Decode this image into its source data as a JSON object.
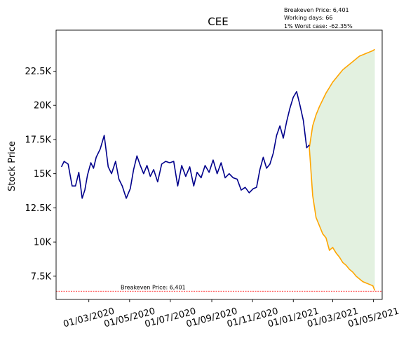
{
  "chart_data": {
    "type": "line",
    "title": "CEE",
    "xlabel": "",
    "ylabel": "Stock Price",
    "x_ticks": [
      "01/03/2020",
      "01/05/2020",
      "01/07/2020",
      "01/09/2020",
      "01/11/2020",
      "01/01/2021",
      "01/03/2021",
      "01/05/2021"
    ],
    "y_ticks": [
      {
        "value": 7500,
        "label": "7.5K"
      },
      {
        "value": 10000,
        "label": "10K"
      },
      {
        "value": 12500,
        "label": "12.5K"
      },
      {
        "value": 15000,
        "label": "15K"
      },
      {
        "value": 17500,
        "label": "17.5K"
      },
      {
        "value": 20000,
        "label": "20K"
      },
      {
        "value": 22500,
        "label": "22.5K"
      }
    ],
    "xlim": [
      "2020-01-12",
      "2021-05-14"
    ],
    "ylim": [
      5800,
      25500
    ],
    "grid": false,
    "colors": {
      "history": "#00008b",
      "projection": "#ffa500",
      "fill": "#e3f1e0",
      "breakeven": "#ff0000"
    },
    "history": {
      "x": [
        "2020-01-20",
        "2020-01-24",
        "2020-01-30",
        "2020-02-05",
        "2020-02-10",
        "2020-02-15",
        "2020-02-20",
        "2020-02-24",
        "2020-02-28",
        "2020-03-04",
        "2020-03-08",
        "2020-03-12",
        "2020-03-18",
        "2020-03-24",
        "2020-03-30",
        "2020-04-04",
        "2020-04-10",
        "2020-04-15",
        "2020-04-20",
        "2020-04-26",
        "2020-05-02",
        "2020-05-07",
        "2020-05-12",
        "2020-05-17",
        "2020-05-22",
        "2020-05-27",
        "2020-06-01",
        "2020-06-06",
        "2020-06-12",
        "2020-06-18",
        "2020-06-24",
        "2020-06-30",
        "2020-07-06",
        "2020-07-12",
        "2020-07-18",
        "2020-07-24",
        "2020-07-30",
        "2020-08-05",
        "2020-08-10",
        "2020-08-16",
        "2020-08-22",
        "2020-08-28",
        "2020-09-03",
        "2020-09-09",
        "2020-09-15",
        "2020-09-21",
        "2020-09-27",
        "2020-10-03",
        "2020-10-09",
        "2020-10-15",
        "2020-10-21",
        "2020-10-27",
        "2020-11-02",
        "2020-11-07",
        "2020-11-12",
        "2020-11-17",
        "2020-11-22",
        "2020-11-27",
        "2020-12-02",
        "2020-12-07",
        "2020-12-12",
        "2020-12-17",
        "2020-12-22",
        "2020-12-27",
        "2021-01-01",
        "2021-01-06",
        "2021-01-11",
        "2021-01-16",
        "2021-01-21",
        "2021-01-25"
      ],
      "y": [
        15500,
        15900,
        15700,
        14100,
        14100,
        15100,
        13200,
        13800,
        14900,
        15800,
        15400,
        16200,
        16800,
        17800,
        15500,
        15000,
        15900,
        14600,
        14100,
        13200,
        13900,
        15300,
        16300,
        15600,
        15000,
        15600,
        14800,
        15300,
        14400,
        15700,
        15900,
        15800,
        15900,
        14100,
        15600,
        14800,
        15500,
        14100,
        15100,
        14700,
        15600,
        15100,
        16000,
        15000,
        15800,
        14700,
        15000,
        14700,
        14600,
        13800,
        14000,
        13600,
        13900,
        14000,
        15300,
        16200,
        15400,
        15700,
        16500,
        17800,
        18500,
        17600,
        18800,
        19800,
        20600,
        21000,
        20000,
        18900,
        16900,
        17100
      ]
    },
    "projection": {
      "x": [
        "2021-01-25",
        "2021-01-30",
        "2021-02-04",
        "2021-02-09",
        "2021-02-14",
        "2021-02-19",
        "2021-02-24",
        "2021-03-01",
        "2021-03-06",
        "2021-03-11",
        "2021-03-16",
        "2021-03-21",
        "2021-03-26",
        "2021-03-31",
        "2021-04-05",
        "2021-04-10",
        "2021-04-15",
        "2021-04-20",
        "2021-04-25",
        "2021-04-30",
        "2021-05-03"
      ],
      "upper": [
        16900,
        18500,
        19300,
        19900,
        20400,
        20900,
        21300,
        21700,
        22000,
        22300,
        22600,
        22800,
        23000,
        23200,
        23400,
        23600,
        23700,
        23800,
        23900,
        24000,
        24100
      ],
      "lower": [
        16900,
        13400,
        11800,
        11200,
        10600,
        10300,
        9400,
        9600,
        9200,
        8900,
        8500,
        8300,
        8000,
        7800,
        7500,
        7300,
        7100,
        7000,
        6900,
        6800,
        6450
      ]
    },
    "breakeven": {
      "value": 6401,
      "label": "Breakeven Price: 6,401"
    },
    "annotations": [
      "Breakeven Price: 6,401",
      "Working days: 66",
      "1% Worst case: -62.35%"
    ]
  }
}
